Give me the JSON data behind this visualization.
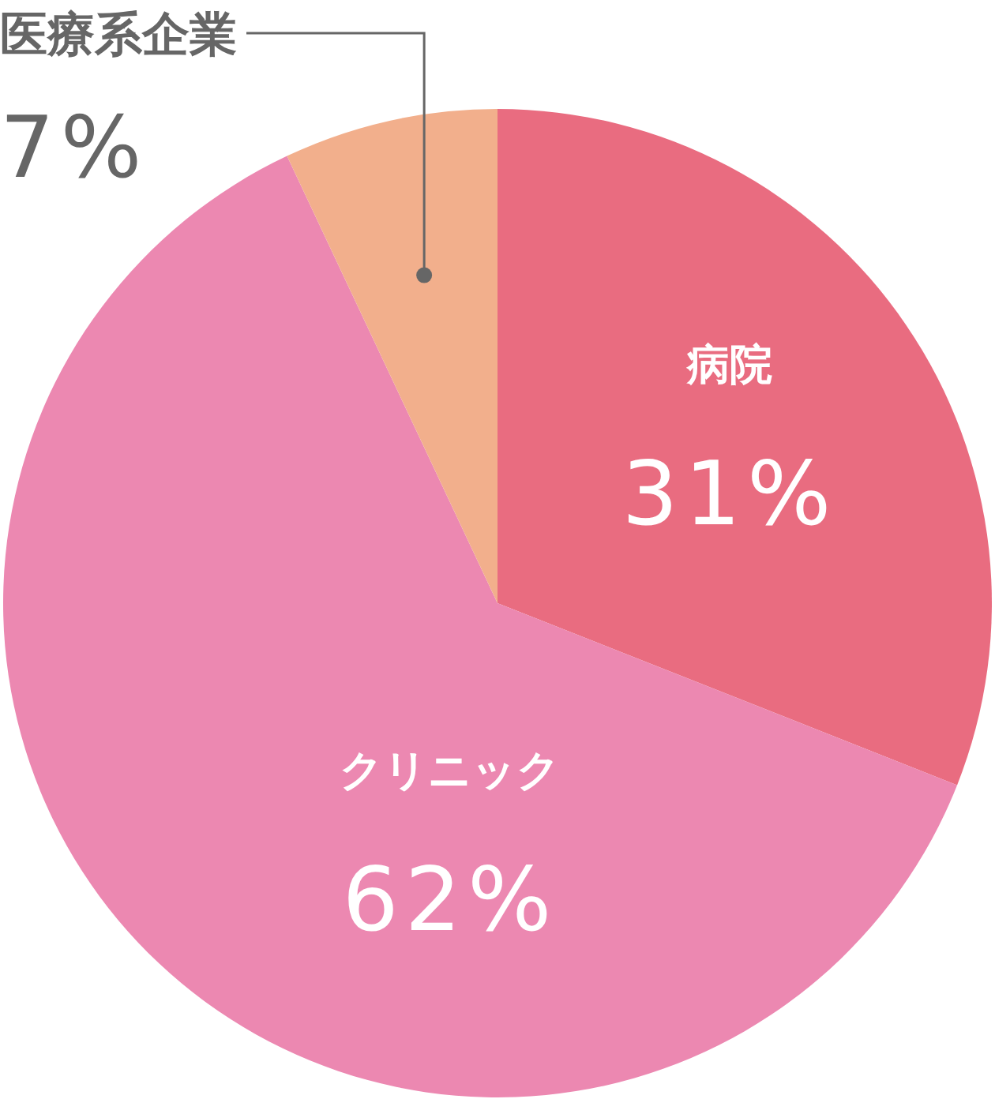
{
  "chart_data": {
    "type": "pie",
    "categories": [
      "病院",
      "クリニック",
      "医療系企業"
    ],
    "values": [
      31,
      62,
      7
    ],
    "value_labels": [
      "31%",
      "62%",
      "7%"
    ],
    "colors": [
      "#e96c80",
      "#ec88b1",
      "#f2af8c"
    ]
  }
}
